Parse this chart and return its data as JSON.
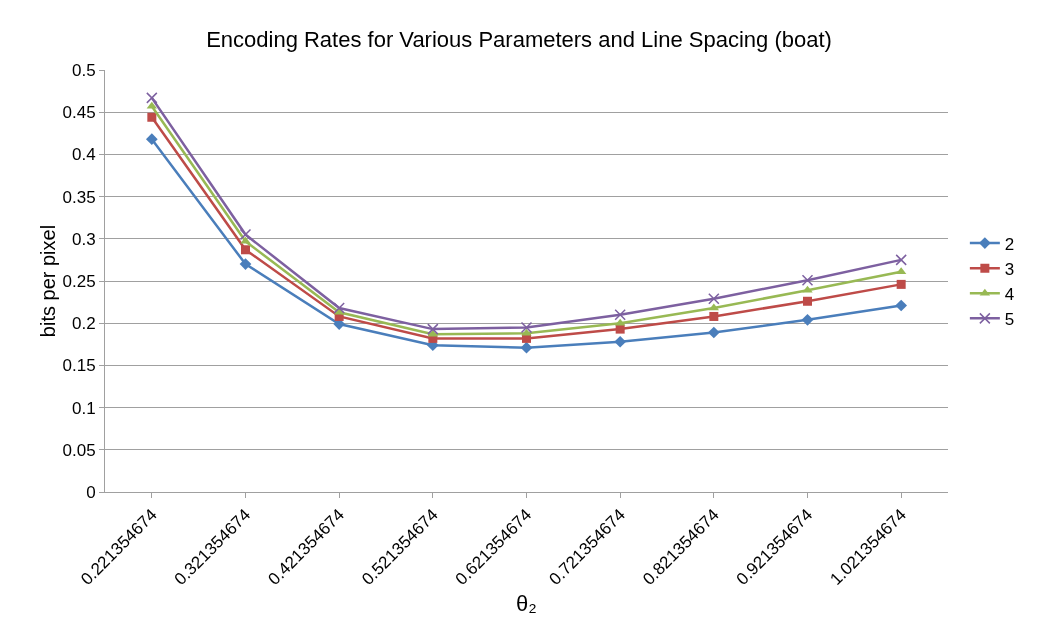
{
  "chart_data": {
    "type": "line",
    "title": "Encoding Rates for Various Parameters and Line Spacing (boat)",
    "xlabel": "θ₂",
    "ylabel": "bits per pixel",
    "categories": [
      "0.221354674",
      "0.321354674",
      "0.421354674",
      "0.521354674",
      "0.621354674",
      "0.721354674",
      "0.821354674",
      "0.921354674",
      "1.021354674"
    ],
    "series": [
      {
        "name": "2",
        "color": "#4a7ebb",
        "marker": "diamond",
        "values": [
          0.418,
          0.27,
          0.199,
          0.174,
          0.171,
          0.178,
          0.189,
          0.204,
          0.221
        ]
      },
      {
        "name": "3",
        "color": "#be4b48",
        "marker": "square",
        "values": [
          0.444,
          0.287,
          0.208,
          0.182,
          0.182,
          0.193,
          0.208,
          0.226,
          0.246
        ]
      },
      {
        "name": "4",
        "color": "#98b954",
        "marker": "triangle",
        "values": [
          0.457,
          0.297,
          0.213,
          0.187,
          0.188,
          0.2,
          0.218,
          0.239,
          0.261
        ]
      },
      {
        "name": "5",
        "color": "#7d60a0",
        "marker": "cross",
        "values": [
          0.467,
          0.305,
          0.218,
          0.193,
          0.195,
          0.21,
          0.229,
          0.251,
          0.275
        ]
      }
    ],
    "ylim": [
      0,
      0.5
    ],
    "yticks": [
      0,
      0.05,
      0.1,
      0.15,
      0.2,
      0.25,
      0.3,
      0.35,
      0.4,
      0.45,
      0.5
    ],
    "grid": "y",
    "legend": "right",
    "line_style": "solid"
  }
}
